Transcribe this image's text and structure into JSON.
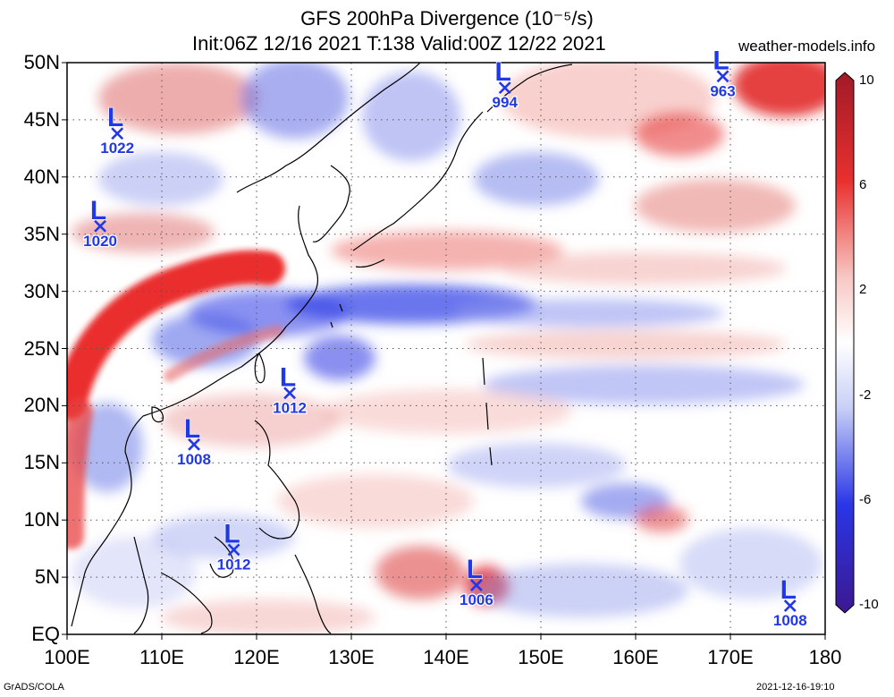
{
  "header": {
    "title_line1": "GFS 200hPa Divergence (10⁻⁵/s)",
    "title_line2": "Init:06Z 12/16 2021 T:138 Valid:00Z 12/22 2021",
    "site": "weather-models.info"
  },
  "footer": {
    "credit": "GrADS/COLA",
    "timestamp": "2021-12-16-19:10"
  },
  "map": {
    "lon_range": [
      100,
      180
    ],
    "lat_range": [
      0,
      50
    ],
    "lat_labels": [
      "50N",
      "45N",
      "40N",
      "35N",
      "30N",
      "25N",
      "20N",
      "15N",
      "10N",
      "5N",
      "EQ"
    ],
    "lon_labels": [
      "100E",
      "110E",
      "120E",
      "130E",
      "140E",
      "150E",
      "160E",
      "170E",
      "180"
    ],
    "grid": true
  },
  "colorbar": {
    "labels": [
      "10",
      "6",
      "2",
      "-2",
      "-6",
      "-10"
    ],
    "colors": [
      "#b0202a",
      "#e8302e",
      "#f39a96",
      "#ffffff",
      "#9aa8f0",
      "#2a36e6",
      "#3c1890"
    ]
  },
  "lows": [
    {
      "symbol": "L",
      "pressure": "1022",
      "lon": 105.3,
      "lat": 43.8
    },
    {
      "symbol": "L",
      "pressure": "1020",
      "lon": 103.5,
      "lat": 35.7
    },
    {
      "symbol": "L",
      "pressure": "994",
      "lon": 146.2,
      "lat": 47.8
    },
    {
      "symbol": "L",
      "pressure": "963",
      "lon": 169.2,
      "lat": 48.8
    },
    {
      "symbol": "L",
      "pressure": "1012",
      "lon": 123.5,
      "lat": 21.1
    },
    {
      "symbol": "L",
      "pressure": "1008",
      "lon": 113.4,
      "lat": 16.6
    },
    {
      "symbol": "L",
      "pressure": "1012",
      "lon": 117.6,
      "lat": 7.4
    },
    {
      "symbol": "L",
      "pressure": "1006",
      "lon": 143.2,
      "lat": 4.3
    },
    {
      "symbol": "L",
      "pressure": "1008",
      "lon": 176.3,
      "lat": 2.5
    }
  ]
}
